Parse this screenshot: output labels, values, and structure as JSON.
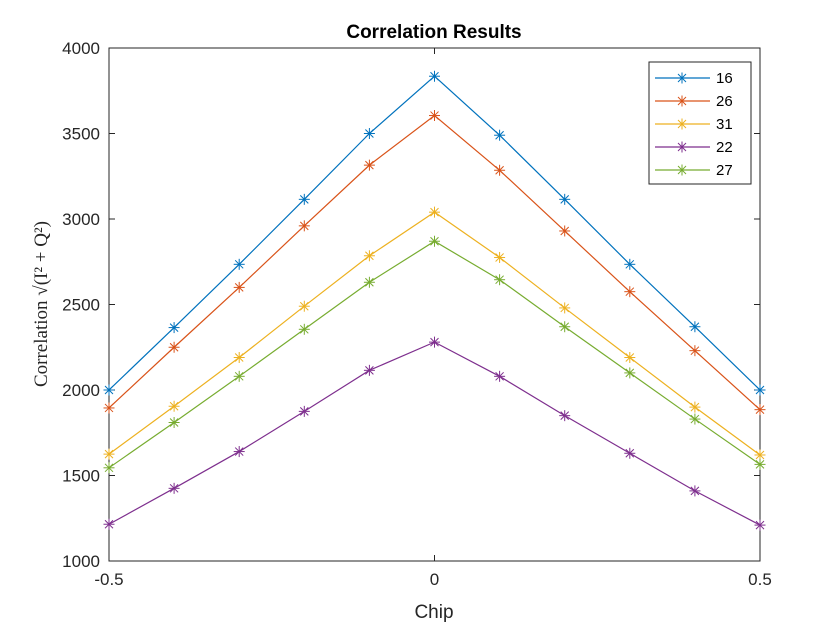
{
  "chart_data": {
    "type": "line",
    "title": "Correlation Results",
    "xlabel": "Chip",
    "ylabel": "Correlation √(I² + Q²)",
    "xlim": [
      -0.5,
      0.5
    ],
    "ylim": [
      1000,
      4000
    ],
    "xticks": [
      -0.5,
      0,
      0.5
    ],
    "xtick_labels": [
      "-0.5",
      "0",
      "0.5"
    ],
    "yticks": [
      1000,
      1500,
      2000,
      2500,
      3000,
      3500,
      4000
    ],
    "ytick_labels": [
      "1000",
      "1500",
      "2000",
      "2500",
      "3000",
      "3500",
      "4000"
    ],
    "grid": false,
    "legend_position": "top-right",
    "marker": "asterisk",
    "x": [
      -0.5,
      -0.4,
      -0.3,
      -0.2,
      -0.1,
      0,
      0.1,
      0.2,
      0.3,
      0.4,
      0.5
    ],
    "series": [
      {
        "name": "16",
        "color": "#0072BD",
        "values": [
          2000,
          2365,
          2735,
          3115,
          3500,
          3835,
          3490,
          3115,
          2735,
          2370,
          2000
        ]
      },
      {
        "name": "26",
        "color": "#D95319",
        "values": [
          1895,
          2250,
          2600,
          2960,
          3315,
          3605,
          3285,
          2930,
          2575,
          2230,
          1885
        ]
      },
      {
        "name": "31",
        "color": "#EDB120",
        "values": [
          1625,
          1905,
          2190,
          2490,
          2785,
          3040,
          2775,
          2480,
          2190,
          1900,
          1620
        ]
      },
      {
        "name": "22",
        "color": "#7E2F8E",
        "values": [
          1215,
          1425,
          1640,
          1875,
          2115,
          2280,
          2080,
          1850,
          1630,
          1410,
          1210
        ]
      },
      {
        "name": "27",
        "color": "#77AC30",
        "values": [
          1545,
          1810,
          2080,
          2355,
          2630,
          2870,
          2645,
          2370,
          2100,
          1830,
          1565
        ]
      }
    ]
  }
}
